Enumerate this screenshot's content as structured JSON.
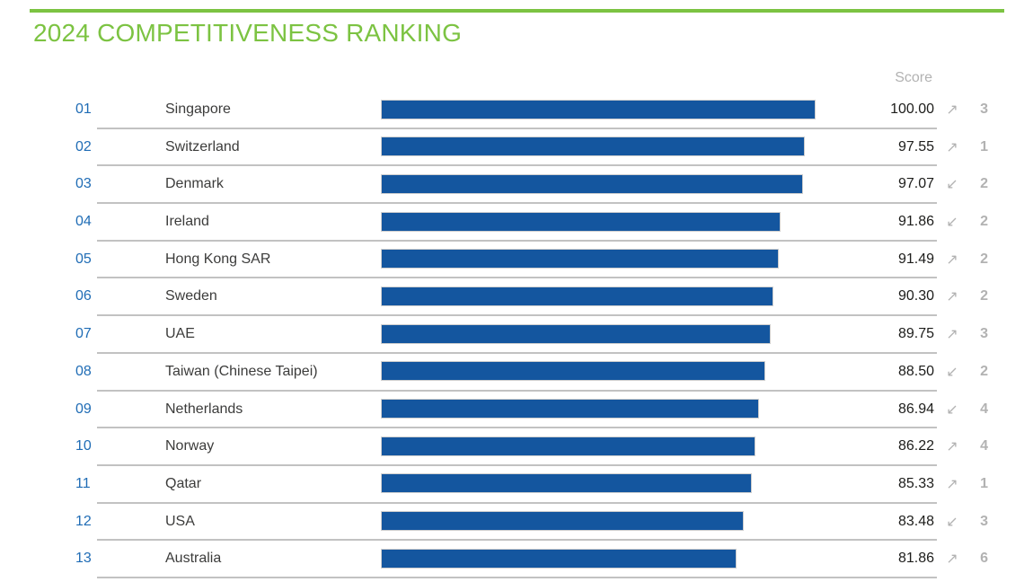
{
  "title": "2024 COMPETITIVENESS RANKING",
  "score_header": "Score",
  "icons": {
    "up": "↗",
    "down": "↙"
  },
  "colors": {
    "accent_green": "#7CC342",
    "bar_blue": "#14569F",
    "rank_blue": "#1F6CB5",
    "country_text": "#3C3C3B",
    "score_text": "#1D1D1B",
    "muted_gray": "#B2B2B2",
    "separator_gray": "#C2C2C2"
  },
  "chart_data": {
    "type": "bar",
    "orientation": "horizontal",
    "title": "2024 COMPETITIVENESS RANKING",
    "score_header": "Score",
    "value_range": [
      0,
      100
    ],
    "grid": false,
    "categories": [
      "Singapore",
      "Switzerland",
      "Denmark",
      "Ireland",
      "Hong Kong SAR",
      "Sweden",
      "UAE",
      "Taiwan (Chinese Taipei)",
      "Netherlands",
      "Norway",
      "Qatar",
      "USA",
      "Australia"
    ],
    "values": [
      100.0,
      97.55,
      97.07,
      91.86,
      91.49,
      90.3,
      89.75,
      88.5,
      86.94,
      86.22,
      85.33,
      83.48,
      81.86
    ],
    "rows": [
      {
        "rank": "01",
        "country": "Singapore",
        "score": "100.00",
        "score_value": 100.0,
        "trend": "up",
        "change": "3"
      },
      {
        "rank": "02",
        "country": "Switzerland",
        "score": "97.55",
        "score_value": 97.55,
        "trend": "up",
        "change": "1"
      },
      {
        "rank": "03",
        "country": "Denmark",
        "score": "97.07",
        "score_value": 97.07,
        "trend": "down",
        "change": "2"
      },
      {
        "rank": "04",
        "country": "Ireland",
        "score": "91.86",
        "score_value": 91.86,
        "trend": "down",
        "change": "2"
      },
      {
        "rank": "05",
        "country": "Hong Kong SAR",
        "score": "91.49",
        "score_value": 91.49,
        "trend": "up",
        "change": "2"
      },
      {
        "rank": "06",
        "country": "Sweden",
        "score": "90.30",
        "score_value": 90.3,
        "trend": "up",
        "change": "2"
      },
      {
        "rank": "07",
        "country": "UAE",
        "score": "89.75",
        "score_value": 89.75,
        "trend": "up",
        "change": "3"
      },
      {
        "rank": "08",
        "country": "Taiwan (Chinese Taipei)",
        "score": "88.50",
        "score_value": 88.5,
        "trend": "down",
        "change": "2"
      },
      {
        "rank": "09",
        "country": "Netherlands",
        "score": "86.94",
        "score_value": 86.94,
        "trend": "down",
        "change": "4"
      },
      {
        "rank": "10",
        "country": "Norway",
        "score": "86.22",
        "score_value": 86.22,
        "trend": "up",
        "change": "4"
      },
      {
        "rank": "11",
        "country": "Qatar",
        "score": "85.33",
        "score_value": 85.33,
        "trend": "up",
        "change": "1"
      },
      {
        "rank": "12",
        "country": "USA",
        "score": "83.48",
        "score_value": 83.48,
        "trend": "down",
        "change": "3"
      },
      {
        "rank": "13",
        "country": "Australia",
        "score": "81.86",
        "score_value": 81.86,
        "trend": "up",
        "change": "6"
      }
    ]
  }
}
